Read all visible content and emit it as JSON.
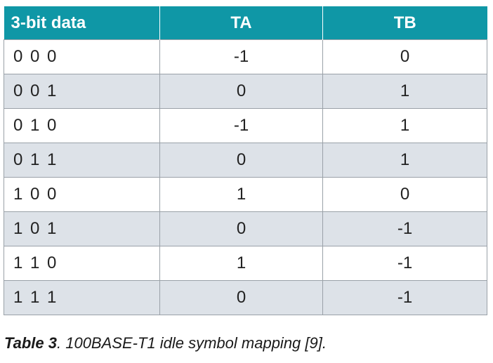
{
  "table": {
    "headers": [
      "3-bit data",
      "TA",
      "TB"
    ],
    "rows": [
      [
        "0 0 0",
        "-1",
        "0"
      ],
      [
        "0 0 1",
        "0",
        "1"
      ],
      [
        "0 1 0",
        "-1",
        "1"
      ],
      [
        "0 1 1",
        "0",
        "1"
      ],
      [
        "1 0 0",
        "1",
        "0"
      ],
      [
        "1 0 1",
        "0",
        "-1"
      ],
      [
        "1 1 0",
        "1",
        "-1"
      ],
      [
        "1 1 1",
        "0",
        "-1"
      ]
    ]
  },
  "caption": {
    "label": "Table 3",
    "text": ". 100BASE-T1 idle symbol mapping [9]."
  },
  "colors": {
    "header_bg": "#0f97a6",
    "header_text": "#ffffff",
    "stripe_bg": "#dde2e8",
    "border": "#9aa1a8"
  }
}
